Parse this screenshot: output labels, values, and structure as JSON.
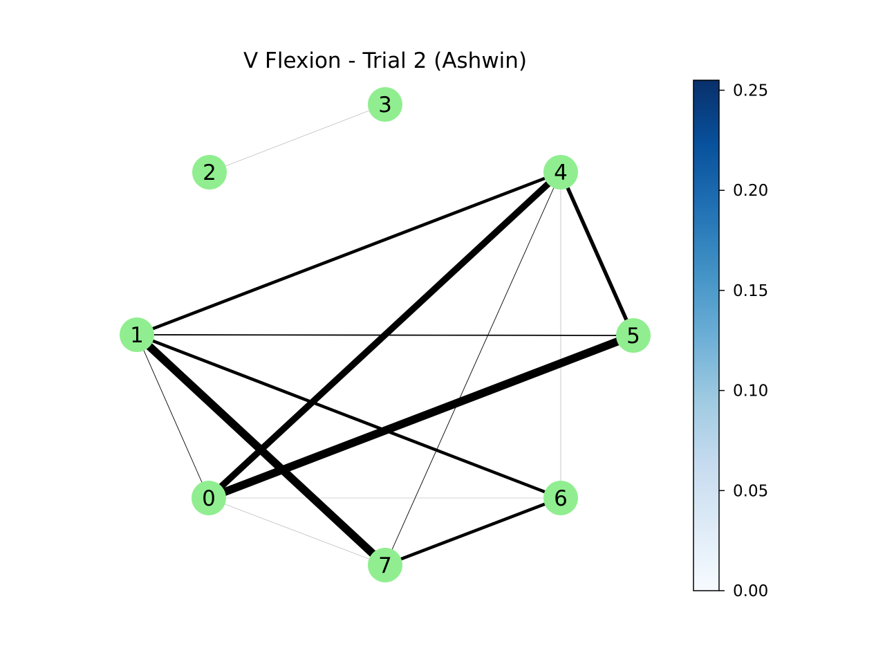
{
  "title": "V Flexion - Trial 2 (Ashwin)",
  "node_color": "#90ee90",
  "edge_color": "#000000",
  "nodes": [
    {
      "id": "0",
      "label": "0"
    },
    {
      "id": "1",
      "label": "1"
    },
    {
      "id": "2",
      "label": "2"
    },
    {
      "id": "3",
      "label": "3"
    },
    {
      "id": "4",
      "label": "4"
    },
    {
      "id": "5",
      "label": "5"
    },
    {
      "id": "6",
      "label": "6"
    },
    {
      "id": "7",
      "label": "7"
    }
  ],
  "edges": [
    {
      "source": "2",
      "target": "3",
      "weight": 0.01
    },
    {
      "source": "1",
      "target": "4",
      "weight": 0.1
    },
    {
      "source": "0",
      "target": "4",
      "weight": 0.21
    },
    {
      "source": "4",
      "target": "5",
      "weight": 0.12
    },
    {
      "source": "4",
      "target": "7",
      "weight": 0.02
    },
    {
      "source": "4",
      "target": "6",
      "weight": 0.01
    },
    {
      "source": "1",
      "target": "5",
      "weight": 0.04
    },
    {
      "source": "0",
      "target": "5",
      "weight": 0.26
    },
    {
      "source": "1",
      "target": "7",
      "weight": 0.26
    },
    {
      "source": "1",
      "target": "6",
      "weight": 0.1
    },
    {
      "source": "1",
      "target": "0",
      "weight": 0.02
    },
    {
      "source": "0",
      "target": "6",
      "weight": 0.01
    },
    {
      "source": "0",
      "target": "7",
      "weight": 0.005
    },
    {
      "source": "7",
      "target": "6",
      "weight": 0.1
    }
  ],
  "colorbar": {
    "cmap": "Blues",
    "min": 0.0,
    "max": 0.255,
    "ticks": [
      "0.00",
      "0.05",
      "0.10",
      "0.15",
      "0.20",
      "0.25"
    ]
  }
}
